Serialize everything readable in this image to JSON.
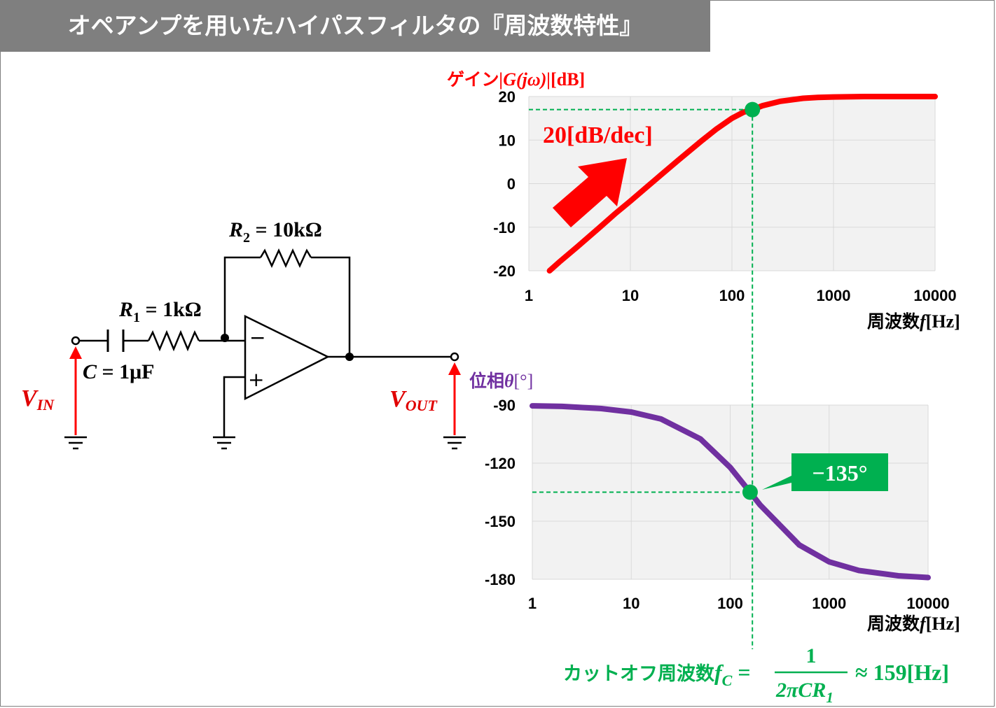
{
  "title": "オペアンプを用いたハイパスフィルタの『周波数特性』",
  "circuit": {
    "r2_label": "R",
    "r2_sub": "2",
    "r2_value": " = 10kΩ",
    "r1_label": "R",
    "r1_sub": "1",
    "r1_value": " = 1kΩ",
    "c_label": "C",
    "c_value": " = 1μF",
    "vin_label": "V",
    "vin_sub": "IN",
    "vout_label": "V",
    "vout_sub": "OUT",
    "minus_sign": "−",
    "plus_sign": "+"
  },
  "colors": {
    "gain": "#ff0000",
    "phase": "#7030a0",
    "cutoff": "#00b050",
    "plot_bg": "#f2f2f2",
    "grid": "#d9d9d9"
  },
  "chart_data": [
    {
      "type": "line",
      "name": "gain",
      "ylabel_prefix": "ゲイン",
      "ylabel_math": "|G(jω)|",
      "ylabel_unit": "[dB]",
      "xlabel_prefix": "周波数",
      "xlabel_math": "f",
      "xlabel_unit": "[Hz]",
      "x_scale": "log",
      "xlim": [
        1,
        10000
      ],
      "ylim": [
        -20,
        20
      ],
      "x_ticks": [
        "1",
        "10",
        "100",
        "1000",
        "10000"
      ],
      "y_ticks": [
        "20",
        "10",
        "0",
        "-10",
        "-20"
      ],
      "grid": true,
      "annotation_slope": "20[dB/dec]",
      "cutoff_point": {
        "x": 159,
        "y": 17
      },
      "series": [
        {
          "x": [
            1.6,
            2,
            3,
            5,
            7,
            10,
            15,
            20,
            30,
            50,
            70,
            100,
            130,
            159,
            200,
            300,
            500,
            700,
            1000,
            2000,
            5000,
            10000
          ],
          "values": [
            -20,
            -18,
            -14.5,
            -10,
            -7,
            -4,
            -0.5,
            2,
            5.5,
            9.8,
            12.5,
            15,
            16.4,
            17,
            17.9,
            18.9,
            19.6,
            19.8,
            19.9,
            20,
            20,
            20
          ]
        }
      ]
    },
    {
      "type": "line",
      "name": "phase",
      "ylabel_prefix": "位相",
      "ylabel_math": "θ",
      "ylabel_unit": "[°]",
      "xlabel_prefix": "周波数",
      "xlabel_math": "f",
      "xlabel_unit": "[Hz]",
      "x_scale": "log",
      "xlim": [
        1,
        10000
      ],
      "ylim": [
        -180,
        -90
      ],
      "x_ticks": [
        "1",
        "10",
        "100",
        "1000",
        "10000"
      ],
      "y_ticks": [
        "-90",
        "-120",
        "-150",
        "-180"
      ],
      "grid": true,
      "annotation_cutoff": "−135°",
      "cutoff_point": {
        "x": 159,
        "y": -135
      },
      "series": [
        {
          "x": [
            1,
            2,
            5,
            10,
            20,
            50,
            100,
            159,
            200,
            500,
            1000,
            2000,
            5000,
            10000
          ],
          "values": [
            -90.4,
            -90.7,
            -91.8,
            -93.6,
            -97.2,
            -107.5,
            -122.2,
            -135,
            -141.5,
            -162.3,
            -171,
            -175.5,
            -178.2,
            -179.1
          ]
        }
      ]
    }
  ],
  "cutoff_formula": {
    "prefix": "カットオフ周波数",
    "symbol": "f",
    "sub": "C",
    "equals": " = ",
    "numerator": "1",
    "denominator": "2πCR",
    "den_sub": "1",
    "result": "≈ 159[Hz]"
  }
}
